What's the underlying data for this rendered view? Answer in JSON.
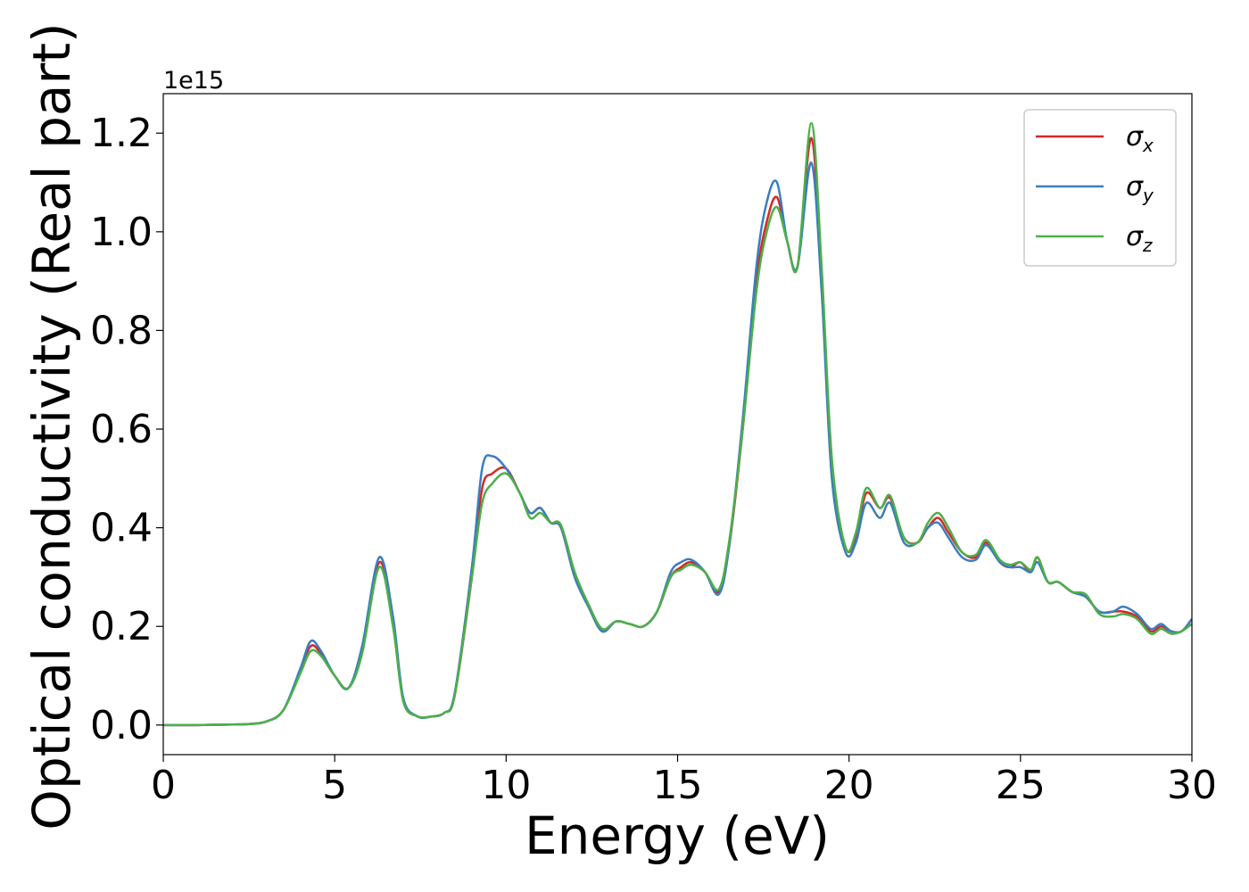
{
  "chart_data": {
    "type": "line",
    "title": "",
    "xlabel": "Energy (eV)",
    "ylabel": "Optical conductivity (Real part)",
    "y_offset_text": "1e15",
    "xlim": [
      0,
      30
    ],
    "ylim": [
      -0.06,
      1.28
    ],
    "xticks": [
      0,
      5,
      10,
      15,
      20,
      25,
      30
    ],
    "yticks": [
      0.0,
      0.2,
      0.4,
      0.6,
      0.8,
      1.0,
      1.2
    ],
    "grid": false,
    "legend_position": "upper right",
    "x": [
      0,
      1,
      2,
      2.5,
      3,
      3.5,
      4,
      4.3,
      4.6,
      5,
      5.4,
      5.8,
      6.3,
      6.7,
      7,
      7.4,
      7.8,
      8.2,
      8.5,
      9,
      9.3,
      9.6,
      10,
      10.4,
      10.7,
      11,
      11.3,
      11.6,
      12,
      12.4,
      12.8,
      13.2,
      13.6,
      14,
      14.4,
      14.8,
      15.1,
      15.4,
      15.8,
      16.2,
      16.5,
      16.9,
      17.3,
      17.6,
      17.9,
      18.2,
      18.5,
      18.9,
      19.2,
      19.5,
      19.9,
      20.2,
      20.5,
      20.9,
      21.2,
      21.6,
      22,
      22.3,
      22.6,
      22.9,
      23.3,
      23.7,
      24,
      24.4,
      24.7,
      25,
      25.3,
      25.5,
      25.8,
      26.1,
      26.5,
      26.9,
      27.3,
      27.7,
      28,
      28.4,
      28.8,
      29.1,
      29.4,
      29.7,
      30
    ],
    "series": [
      {
        "name": "σx",
        "symbol": "σ",
        "subscript": "x",
        "color": "#d62728",
        "values": [
          0.0,
          0.0,
          0.001,
          0.002,
          0.007,
          0.03,
          0.11,
          0.16,
          0.145,
          0.1,
          0.075,
          0.15,
          0.33,
          0.21,
          0.05,
          0.018,
          0.017,
          0.025,
          0.06,
          0.3,
          0.48,
          0.51,
          0.52,
          0.47,
          0.43,
          0.44,
          0.41,
          0.4,
          0.3,
          0.24,
          0.19,
          0.21,
          0.205,
          0.2,
          0.23,
          0.3,
          0.32,
          0.33,
          0.31,
          0.27,
          0.36,
          0.6,
          0.9,
          1.02,
          1.07,
          0.98,
          0.93,
          1.19,
          0.9,
          0.52,
          0.36,
          0.38,
          0.47,
          0.44,
          0.46,
          0.38,
          0.37,
          0.4,
          0.42,
          0.39,
          0.35,
          0.34,
          0.37,
          0.33,
          0.32,
          0.33,
          0.31,
          0.34,
          0.29,
          0.29,
          0.27,
          0.26,
          0.23,
          0.23,
          0.23,
          0.22,
          0.19,
          0.2,
          0.19,
          0.19,
          0.215
        ]
      },
      {
        "name": "σy",
        "symbol": "σ",
        "subscript": "y",
        "color": "#3a7ebf",
        "values": [
          0.0,
          0.0,
          0.001,
          0.002,
          0.007,
          0.03,
          0.115,
          0.17,
          0.15,
          0.1,
          0.075,
          0.16,
          0.34,
          0.22,
          0.055,
          0.018,
          0.017,
          0.025,
          0.065,
          0.32,
          0.52,
          0.545,
          0.52,
          0.47,
          0.43,
          0.44,
          0.41,
          0.4,
          0.3,
          0.24,
          0.19,
          0.21,
          0.205,
          0.2,
          0.23,
          0.31,
          0.33,
          0.335,
          0.31,
          0.265,
          0.36,
          0.62,
          0.93,
          1.06,
          1.1,
          0.98,
          0.93,
          1.14,
          0.88,
          0.5,
          0.35,
          0.37,
          0.45,
          0.42,
          0.45,
          0.37,
          0.37,
          0.4,
          0.41,
          0.38,
          0.34,
          0.335,
          0.365,
          0.33,
          0.32,
          0.32,
          0.31,
          0.33,
          0.29,
          0.29,
          0.27,
          0.26,
          0.23,
          0.23,
          0.24,
          0.225,
          0.195,
          0.205,
          0.19,
          0.19,
          0.215
        ]
      },
      {
        "name": "σz",
        "symbol": "σ",
        "subscript": "z",
        "color": "#4daf4a",
        "values": [
          0.0,
          0.0,
          0.001,
          0.002,
          0.007,
          0.03,
          0.105,
          0.15,
          0.14,
          0.1,
          0.075,
          0.145,
          0.32,
          0.2,
          0.048,
          0.018,
          0.017,
          0.025,
          0.06,
          0.3,
          0.45,
          0.49,
          0.51,
          0.47,
          0.42,
          0.43,
          0.41,
          0.405,
          0.31,
          0.245,
          0.195,
          0.21,
          0.205,
          0.2,
          0.23,
          0.3,
          0.315,
          0.325,
          0.31,
          0.275,
          0.37,
          0.6,
          0.88,
          1.0,
          1.05,
          0.98,
          0.93,
          1.22,
          0.93,
          0.54,
          0.36,
          0.39,
          0.48,
          0.44,
          0.465,
          0.38,
          0.37,
          0.41,
          0.43,
          0.4,
          0.35,
          0.345,
          0.375,
          0.335,
          0.325,
          0.33,
          0.315,
          0.34,
          0.29,
          0.29,
          0.27,
          0.265,
          0.225,
          0.22,
          0.225,
          0.215,
          0.185,
          0.195,
          0.185,
          0.19,
          0.205
        ]
      }
    ]
  }
}
